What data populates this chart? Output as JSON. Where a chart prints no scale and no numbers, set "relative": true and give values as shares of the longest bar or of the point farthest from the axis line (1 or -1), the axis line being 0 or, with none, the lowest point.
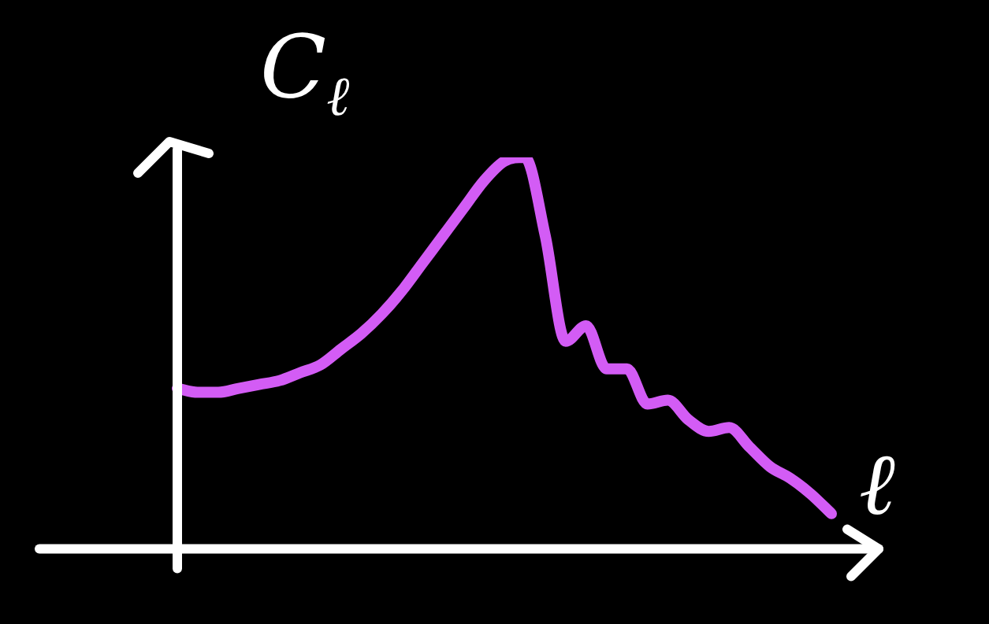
{
  "chart_data": {
    "type": "line",
    "xlabel": "ℓ",
    "ylabel": "C$_{ℓ}$",
    "relative": true,
    "legend": false,
    "marker": "none",
    "line_style": "solid",
    "categories": [
      null,
      null,
      null,
      null,
      null,
      null,
      null,
      null,
      null,
      null,
      null,
      null,
      null,
      null,
      null,
      null,
      null,
      null,
      null,
      null,
      null,
      null,
      null,
      null,
      null,
      null,
      null,
      null,
      null,
      null,
      null,
      null,
      null
    ],
    "series": [
      {
        "color": "#d35cf5",
        "values": [
          0.41,
          0.4,
          0.4,
          0.41,
          0.42,
          0.43,
          0.45,
          0.47,
          0.51,
          0.55,
          0.6,
          0.66,
          0.73,
          0.8,
          0.87,
          0.94,
          0.99,
          1.0,
          0.8,
          0.53,
          0.57,
          0.46,
          0.46,
          0.37,
          0.38,
          0.33,
          0.3,
          0.31,
          0.26,
          0.21,
          0.18,
          0.14,
          0.09
        ]
      }
    ]
  }
}
